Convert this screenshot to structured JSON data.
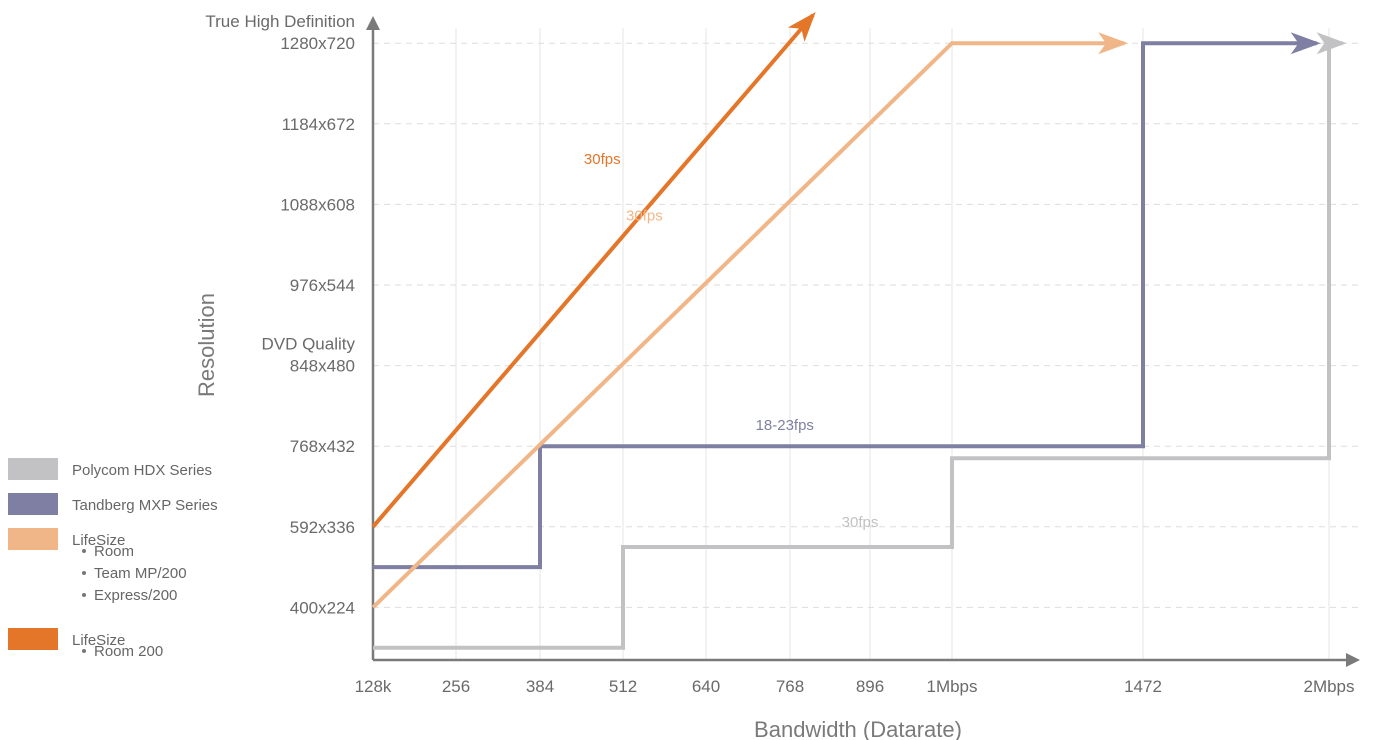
{
  "chart_data": {
    "type": "line",
    "xlabel": "Bandwidth (Datarate)",
    "ylabel": "Resolution",
    "x_ticks": [
      {
        "value": 128,
        "label": "128k"
      },
      {
        "value": 256,
        "label": "256"
      },
      {
        "value": 384,
        "label": "384"
      },
      {
        "value": 512,
        "label": "512"
      },
      {
        "value": 640,
        "label": "640"
      },
      {
        "value": 768,
        "label": "768"
      },
      {
        "value": 896,
        "label": "896"
      },
      {
        "value": 1024,
        "label": "1Mbps"
      },
      {
        "value": 1472,
        "label": "1472"
      },
      {
        "value": 2048,
        "label": "2Mbps"
      }
    ],
    "y_ticks": [
      {
        "index": 1,
        "label": "400x224"
      },
      {
        "index": 2,
        "label": "592x336"
      },
      {
        "index": 3,
        "label": "768x432"
      },
      {
        "index": 4,
        "label": "848x480",
        "label2": "DVD Quality"
      },
      {
        "index": 5,
        "label": "976x544"
      },
      {
        "index": 6,
        "label": "1088x608"
      },
      {
        "index": 7,
        "label": "1184x672"
      },
      {
        "index": 8,
        "label": "1280x720",
        "label2": "True High Definition"
      }
    ],
    "series": [
      {
        "name": "Polycom HDX Series",
        "color": "#c2c2c4",
        "label": "30fps",
        "label_at": {
          "x": 880,
          "y": 2.0
        },
        "points": [
          [
            128,
            0.5
          ],
          [
            512,
            0.5
          ],
          [
            512,
            1.75
          ],
          [
            1024,
            1.75
          ],
          [
            1024,
            2.85
          ],
          [
            2048,
            2.85
          ],
          [
            2048,
            8.0
          ]
        ],
        "arrow_to": [
          2090,
          8.0
        ]
      },
      {
        "name": "Tandberg MXP Series",
        "color": "#7e7fa2",
        "label": "18-23fps",
        "label_at": {
          "x": 760,
          "y": 3.2
        },
        "points": [
          [
            128,
            1.5
          ],
          [
            384,
            1.5
          ],
          [
            384,
            3.0
          ],
          [
            1472,
            3.0
          ],
          [
            1472,
            8.0
          ],
          [
            2010,
            8.0
          ]
        ],
        "arrow_to": [
          2010,
          8.0
        ]
      },
      {
        "name": "LifeSize",
        "sub_items": [
          "Room",
          "Team MP/200",
          "Express/200"
        ],
        "color": "#f1b687",
        "label": "30fps",
        "label_at": {
          "x": 545,
          "y": 5.8
        },
        "points": [
          [
            128,
            1.0
          ],
          [
            1024,
            8.0
          ],
          [
            1428,
            8.0
          ]
        ],
        "arrow_to": [
          1428,
          8.0
        ]
      },
      {
        "name": "LifeSize",
        "sub_items": [
          "Room 200"
        ],
        "color": "#e4762a",
        "label": "30fps",
        "label_at": {
          "x": 480,
          "y": 6.5
        },
        "points": [
          [
            128,
            2.0
          ],
          [
            805,
            8.35
          ]
        ],
        "arrow_to": [
          805,
          8.35
        ]
      }
    ],
    "grid": true,
    "legend_position": "left"
  }
}
